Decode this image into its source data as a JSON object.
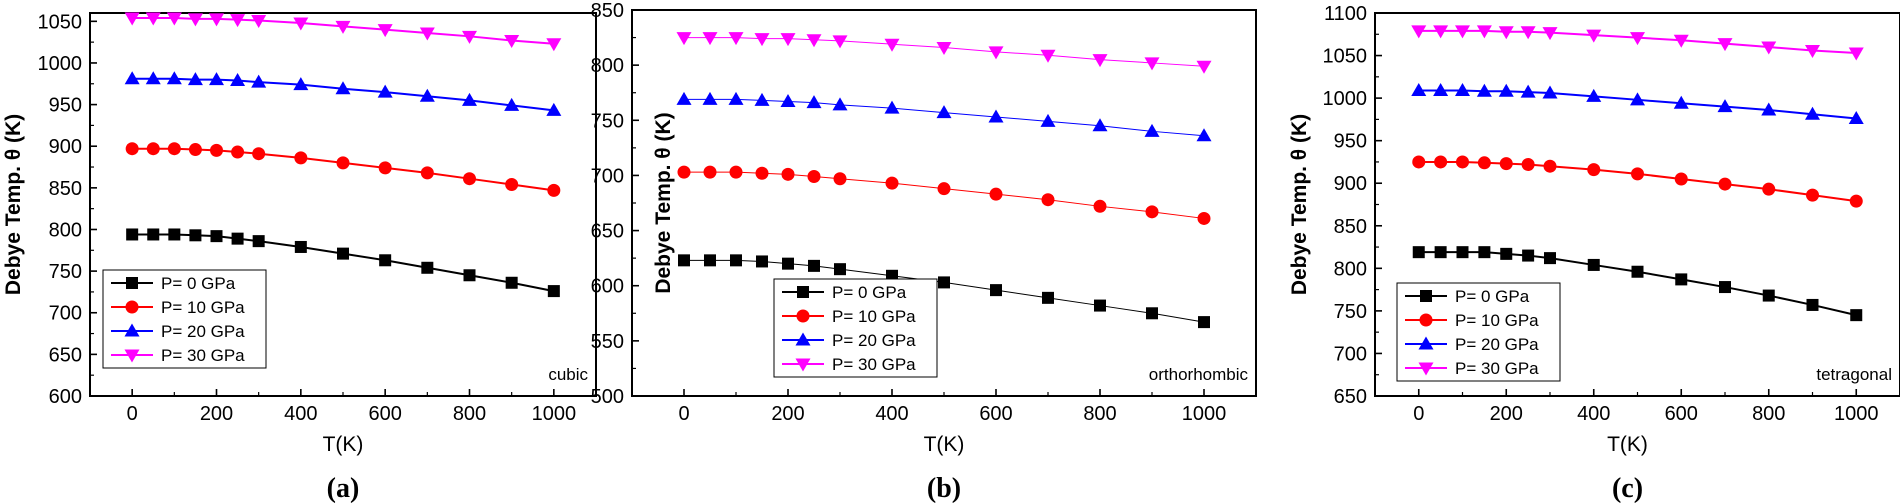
{
  "figure": {
    "colors": {
      "P0": "#000000",
      "P10": "#ff0000",
      "P20": "#0000ff",
      "P30": "#ff00ff"
    },
    "markers": {
      "P0": "square",
      "P10": "circle",
      "P20": "triangle-up",
      "P30": "triangle-down"
    }
  },
  "chart_data": [
    {
      "type": "line",
      "caption": "(a)",
      "annotation": "cubic",
      "xlabel": "T(K)",
      "ylabel": "Debye Temp. θ (K)",
      "xlim": [
        -100,
        1100
      ],
      "ylim": [
        600,
        1060
      ],
      "xticks": [
        0,
        200,
        400,
        600,
        800,
        1000
      ],
      "yticks": [
        600,
        650,
        700,
        750,
        800,
        850,
        900,
        950,
        1000,
        1050
      ],
      "legend_position": "bottom-left",
      "x": [
        0,
        50,
        100,
        150,
        200,
        250,
        300,
        400,
        500,
        600,
        700,
        800,
        900,
        1000
      ],
      "series": [
        {
          "name": "P= 0 GPa",
          "key": "P0",
          "values": [
            794,
            794,
            794,
            793,
            792,
            789,
            786,
            779,
            771,
            763,
            754,
            745,
            736,
            726
          ]
        },
        {
          "name": "P= 10 GPa",
          "key": "P10",
          "values": [
            897,
            897,
            897,
            896,
            895,
            893,
            891,
            886,
            880,
            874,
            868,
            861,
            854,
            847
          ]
        },
        {
          "name": "P= 20 GPa",
          "key": "P20",
          "values": [
            981,
            981,
            981,
            980,
            980,
            979,
            977,
            974,
            969,
            965,
            960,
            955,
            949,
            943
          ]
        },
        {
          "name": "P= 30 GPa",
          "key": "P30",
          "values": [
            1054,
            1054,
            1054,
            1053,
            1053,
            1052,
            1051,
            1048,
            1044,
            1040,
            1036,
            1032,
            1027,
            1023
          ]
        }
      ]
    },
    {
      "type": "line",
      "caption": "(b)",
      "annotation": "orthorhombic",
      "xlabel": "T(K)",
      "ylabel": "Debye Temp. θ (K)",
      "xlim": [
        -100,
        1100
      ],
      "ylim": [
        500,
        850
      ],
      "xticks": [
        0,
        200,
        400,
        600,
        800,
        1000
      ],
      "yticks": [
        500,
        550,
        600,
        650,
        700,
        750,
        800,
        850
      ],
      "legend_position": "bottom-left",
      "x": [
        0,
        50,
        100,
        150,
        200,
        250,
        300,
        400,
        500,
        600,
        700,
        800,
        900,
        1000
      ],
      "series": [
        {
          "name": "P= 0 GPa",
          "key": "P0",
          "values": [
            623,
            623,
            623,
            622,
            620,
            618,
            615,
            609,
            603,
            596,
            589,
            582,
            575,
            567
          ]
        },
        {
          "name": "P= 10 GPa",
          "key": "P10",
          "values": [
            703,
            703,
            703,
            702,
            701,
            699,
            697,
            693,
            688,
            683,
            678,
            672,
            667,
            661
          ]
        },
        {
          "name": "P= 20 GPa",
          "key": "P20",
          "values": [
            769,
            769,
            769,
            768,
            767,
            766,
            764,
            761,
            757,
            753,
            749,
            745,
            740,
            736
          ]
        },
        {
          "name": "P= 30 GPa",
          "key": "P30",
          "values": [
            825,
            825,
            825,
            824,
            824,
            823,
            822,
            819,
            816,
            812,
            809,
            805,
            802,
            799
          ]
        }
      ]
    },
    {
      "type": "line",
      "caption": "(c)",
      "annotation": "tetragonal",
      "xlabel": "T(K)",
      "ylabel": "Debye Temp. θ (K)",
      "xlim": [
        -100,
        1100
      ],
      "ylim": [
        650,
        1100
      ],
      "xticks": [
        0,
        200,
        400,
        600,
        800,
        1000
      ],
      "yticks": [
        650,
        700,
        750,
        800,
        850,
        900,
        950,
        1000,
        1050,
        1100
      ],
      "legend_position": "bottom-left",
      "x": [
        0,
        50,
        100,
        150,
        200,
        250,
        300,
        400,
        500,
        600,
        700,
        800,
        900,
        1000
      ],
      "series": [
        {
          "name": "P= 0 GPa",
          "key": "P0",
          "values": [
            819,
            819,
            819,
            819,
            817,
            815,
            812,
            804,
            796,
            787,
            778,
            768,
            757,
            745
          ]
        },
        {
          "name": "P= 10 GPa",
          "key": "P10",
          "values": [
            925,
            925,
            925,
            924,
            923,
            922,
            920,
            916,
            911,
            905,
            899,
            893,
            886,
            879
          ]
        },
        {
          "name": "P= 20 GPa",
          "key": "P20",
          "values": [
            1009,
            1009,
            1009,
            1008,
            1008,
            1007,
            1006,
            1002,
            998,
            994,
            990,
            986,
            981,
            976
          ]
        },
        {
          "name": "P= 30 GPa",
          "key": "P30",
          "values": [
            1079,
            1079,
            1079,
            1079,
            1078,
            1078,
            1077,
            1074,
            1071,
            1068,
            1064,
            1060,
            1056,
            1053
          ]
        }
      ]
    }
  ]
}
